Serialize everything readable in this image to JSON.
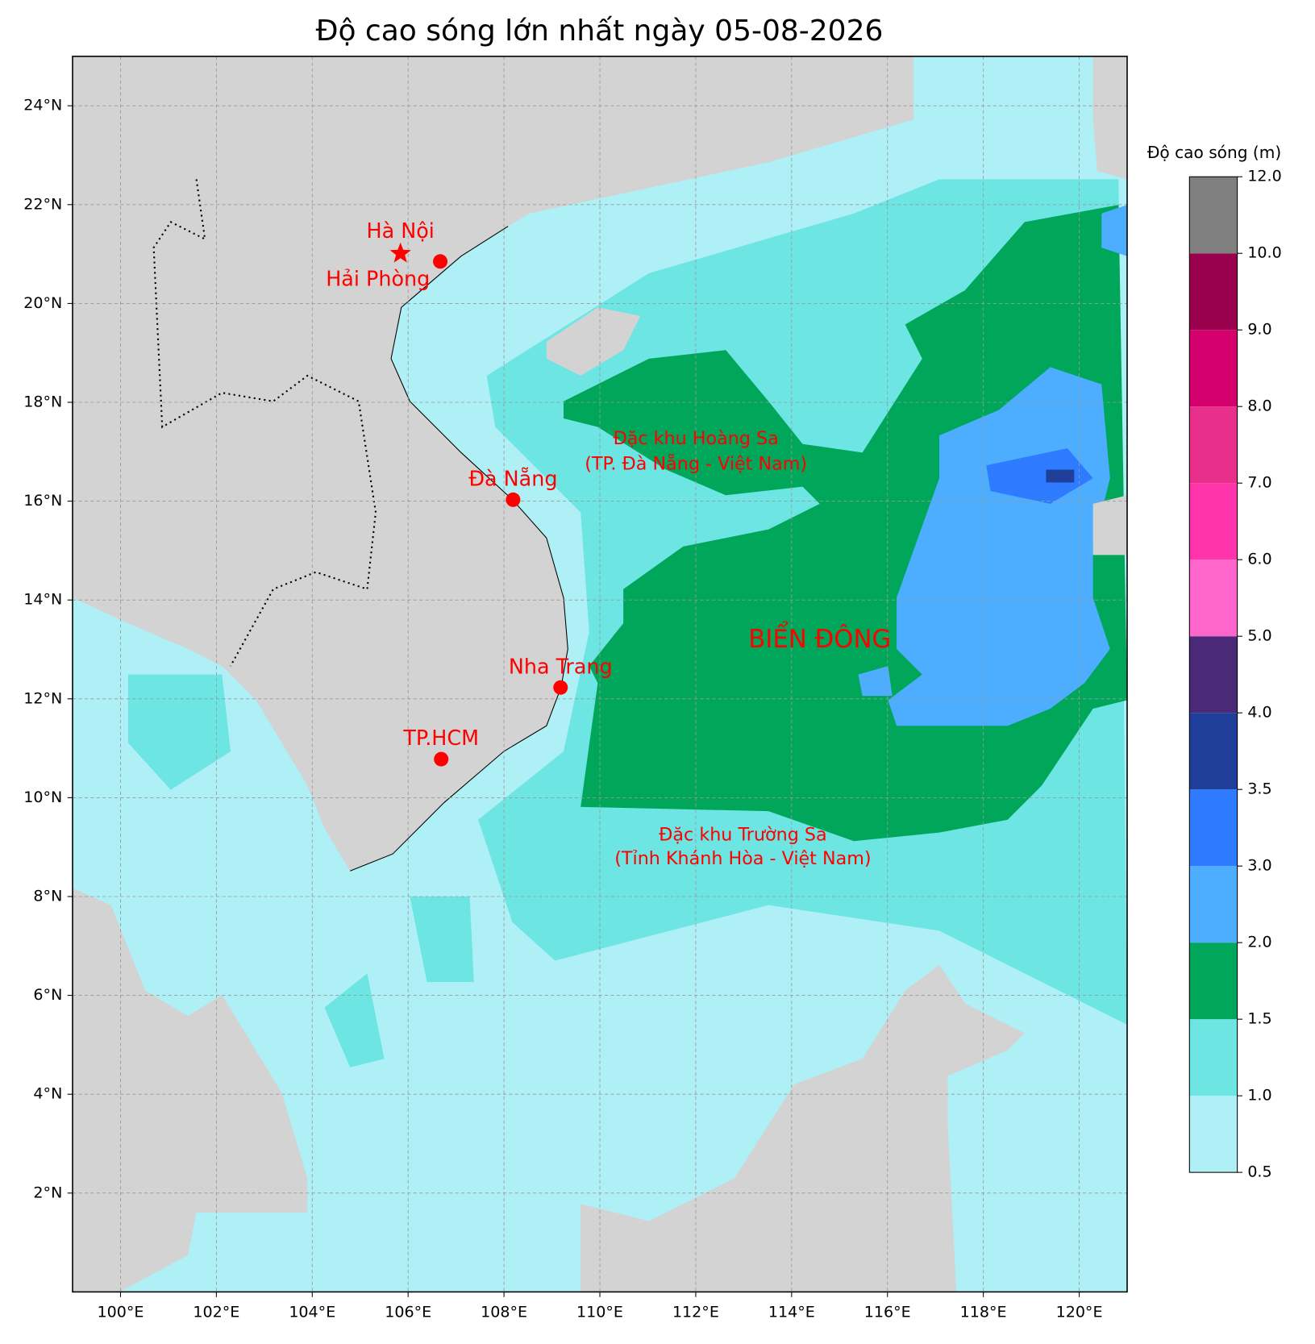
{
  "chart_data": {
    "type": "map",
    "title": "Độ cao sóng lớn nhất ngày 05-08-2026",
    "xlim": [
      99,
      121
    ],
    "ylim": [
      0,
      25
    ],
    "xticks": [
      {
        "value": 100,
        "label": "100°E"
      },
      {
        "value": 102,
        "label": "102°E"
      },
      {
        "value": 104,
        "label": "104°E"
      },
      {
        "value": 106,
        "label": "106°E"
      },
      {
        "value": 108,
        "label": "108°E"
      },
      {
        "value": 110,
        "label": "110°E"
      },
      {
        "value": 112,
        "label": "112°E"
      },
      {
        "value": 114,
        "label": "114°E"
      },
      {
        "value": 116,
        "label": "116°E"
      },
      {
        "value": 118,
        "label": "118°E"
      },
      {
        "value": 120,
        "label": "120°E"
      }
    ],
    "yticks": [
      {
        "value": 2,
        "label": "2°N"
      },
      {
        "value": 4,
        "label": "4°N"
      },
      {
        "value": 6,
        "label": "6°N"
      },
      {
        "value": 8,
        "label": "8°N"
      },
      {
        "value": 10,
        "label": "10°N"
      },
      {
        "value": 12,
        "label": "12°N"
      },
      {
        "value": 14,
        "label": "14°N"
      },
      {
        "value": 16,
        "label": "16°N"
      },
      {
        "value": 18,
        "label": "18°N"
      },
      {
        "value": 20,
        "label": "20°N"
      },
      {
        "value": 22,
        "label": "22°N"
      },
      {
        "value": 24,
        "label": "24°N"
      }
    ],
    "grid": true,
    "marker_color": "#ff0000",
    "cities": [
      {
        "name": "Hà Nội",
        "lon": 105.84,
        "lat": 21.01,
        "marker": "star"
      },
      {
        "name": "Hải Phòng",
        "lon": 106.67,
        "lat": 20.85,
        "marker": "circle"
      },
      {
        "name": "Đà Nẵng",
        "lon": 108.19,
        "lat": 16.03,
        "marker": "circle"
      },
      {
        "name": "Nha Trang",
        "lon": 109.18,
        "lat": 12.23,
        "marker": "circle"
      },
      {
        "name": "TP.HCM",
        "lon": 106.69,
        "lat": 10.78,
        "marker": "circle"
      }
    ],
    "annotations": [
      "Đặc khu Hoàng Sa",
      "(TP. Đà Nẵng - Việt Nam)",
      "BIỂN ĐÔNG",
      "Đặc khu Trường Sa",
      "(Tỉnh Khánh Hòa - Việt Nam)"
    ],
    "colorbar": {
      "label": "Độ cao sóng (m)",
      "ticks": [
        {
          "value": 0.5,
          "label": "0.5"
        },
        {
          "value": 1,
          "label": "1.0"
        },
        {
          "value": 1.5,
          "label": "1.5"
        },
        {
          "value": 2,
          "label": "2.0"
        },
        {
          "value": 3,
          "label": "3.0"
        },
        {
          "value": 3.5,
          "label": "3.5"
        },
        {
          "value": 4,
          "label": "4.0"
        },
        {
          "value": 5,
          "label": "5.0"
        },
        {
          "value": 6,
          "label": "6.0"
        },
        {
          "value": 7,
          "label": "7.0"
        },
        {
          "value": 8,
          "label": "8.0"
        },
        {
          "value": 9,
          "label": "9.0"
        },
        {
          "value": 10,
          "label": "10.0"
        },
        {
          "value": 12,
          "label": "12.0"
        }
      ],
      "colors": [
        "#aef0f5",
        "#6ce5e3",
        "#00a65a",
        "#4dadff",
        "#2e7bff",
        "#1f3f9a",
        "#4a2a78",
        "#ff66cc",
        "#ff33aa",
        "#e8308a",
        "#d4006e",
        "#99004d",
        "#808080"
      ]
    }
  }
}
